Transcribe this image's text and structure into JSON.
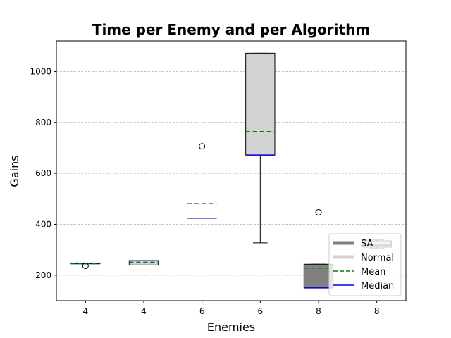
{
  "chart_data": {
    "type": "box",
    "title": "Time per Enemy and per Algorithm",
    "xlabel": "Enemies",
    "ylabel": "Gains",
    "ylim": [
      100,
      1120
    ],
    "yticks": [
      200,
      400,
      600,
      800,
      1000
    ],
    "grid": "y-dashed",
    "legend_position": "lower-right",
    "categories": [
      "4",
      "4",
      "6",
      "6",
      "8",
      "8"
    ],
    "boxes": [
      {
        "label": "4",
        "series": "SA",
        "whisker_low": 245,
        "q1": 245,
        "median": 245,
        "q3": 248,
        "whisker_high": 248,
        "mean": 245,
        "outliers": [
          237
        ]
      },
      {
        "label": "4",
        "series": "Normal",
        "whisker_low": 240,
        "q1": 240,
        "median": 257,
        "q3": 257,
        "whisker_high": 257,
        "mean": 251,
        "outliers": []
      },
      {
        "label": "6",
        "series": "SA",
        "whisker_low": 424,
        "q1": 424,
        "median": 424,
        "q3": 424,
        "whisker_high": 424,
        "mean": 481,
        "outliers": [
          706
        ]
      },
      {
        "label": "6",
        "series": "Normal",
        "whisker_low": 327,
        "q1": 672,
        "median": 672,
        "q3": 1072,
        "whisker_high": 1072,
        "mean": 764,
        "outliers": []
      },
      {
        "label": "8",
        "series": "SA",
        "whisker_low": 150,
        "q1": 150,
        "median": 150,
        "q3": 243,
        "whisker_high": 243,
        "mean": 228,
        "outliers": [
          447
        ]
      },
      {
        "label": "8",
        "series": "Normal",
        "whisker_low": 305,
        "q1": 310,
        "median": 318,
        "q3": 335,
        "whisker_high": 340,
        "mean": 320,
        "outliers": []
      }
    ],
    "legend": [
      {
        "label": "SA",
        "kind": "patch",
        "color": "#808080"
      },
      {
        "label": "Normal",
        "kind": "patch",
        "color": "#d3d3d3"
      },
      {
        "label": "Mean",
        "kind": "dashed",
        "color": "#008000"
      },
      {
        "label": "Median",
        "kind": "line",
        "color": "#0000cd"
      }
    ],
    "colors": {
      "SA": "#808080",
      "Normal": "#d3d3d3",
      "mean": "#008000",
      "median": "#0000cd"
    }
  }
}
